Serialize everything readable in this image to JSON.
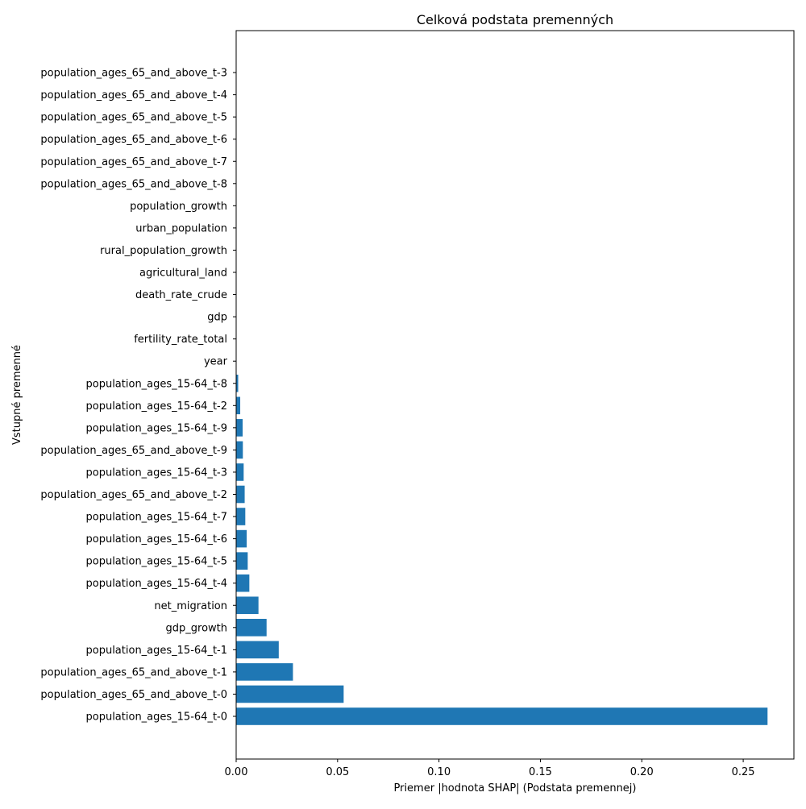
{
  "chart_data": {
    "type": "bar",
    "orientation": "horizontal",
    "title": "Celková podstata premenných",
    "xlabel": "Priemer |hodnota SHAP| (Podstata premennej)",
    "ylabel": "Vstupné premenné",
    "xlim": [
      0,
      0.275
    ],
    "x_ticks": [
      0.0,
      0.05,
      0.1,
      0.15,
      0.2,
      0.25
    ],
    "x_tick_labels": [
      "0.00",
      "0.05",
      "0.10",
      "0.15",
      "0.20",
      "0.25"
    ],
    "grid": false,
    "bar_color": "#1f77b4",
    "categories": [
      "population_ages_15-64_t-0",
      "population_ages_65_and_above_t-0",
      "population_ages_65_and_above_t-1",
      "population_ages_15-64_t-1",
      "gdp_growth",
      "net_migration",
      "population_ages_15-64_t-4",
      "population_ages_15-64_t-5",
      "population_ages_15-64_t-6",
      "population_ages_15-64_t-7",
      "population_ages_65_and_above_t-2",
      "population_ages_15-64_t-3",
      "population_ages_65_and_above_t-9",
      "population_ages_15-64_t-9",
      "population_ages_15-64_t-2",
      "population_ages_15-64_t-8",
      "year",
      "fertility_rate_total",
      "gdp",
      "death_rate_crude",
      "agricultural_land",
      "rural_population_growth",
      "urban_population",
      "population_growth",
      "population_ages_65_and_above_t-8",
      "population_ages_65_and_above_t-7",
      "population_ages_65_and_above_t-6",
      "population_ages_65_and_above_t-5",
      "population_ages_65_and_above_t-4",
      "population_ages_65_and_above_t-3"
    ],
    "values": [
      0.262,
      0.053,
      0.028,
      0.021,
      0.015,
      0.011,
      0.0065,
      0.0057,
      0.0052,
      0.0045,
      0.0042,
      0.0037,
      0.0033,
      0.0032,
      0.002,
      0.001,
      0,
      0,
      0,
      0,
      0,
      0,
      0,
      0,
      0,
      0,
      0,
      0,
      0,
      0
    ]
  }
}
